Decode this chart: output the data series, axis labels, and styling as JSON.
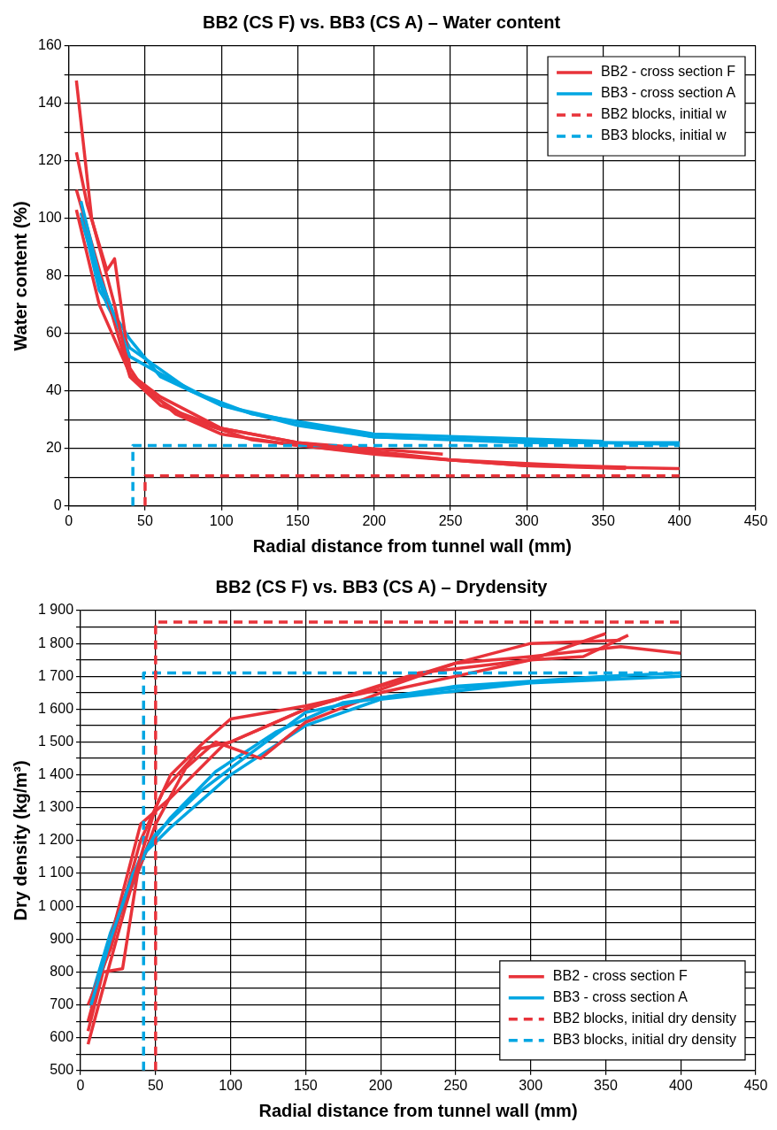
{
  "chart_data": [
    {
      "type": "line",
      "title": "BB2 (CS F) vs. BB3 (CS A) – Water content",
      "xlabel": "Radial distance from tunnel wall (mm)",
      "ylabel": "Water content (%)",
      "xlim": [
        0,
        450
      ],
      "xticks": [
        0,
        50,
        100,
        150,
        200,
        250,
        300,
        350,
        400,
        450
      ],
      "ylim": [
        0,
        160
      ],
      "yticks": [
        0,
        {
          "value": 10,
          "label": null
        },
        20,
        {
          "value": 30,
          "label": null
        },
        40,
        {
          "value": 50,
          "label": null
        },
        60,
        {
          "value": 70,
          "label": null
        },
        80,
        {
          "value": 90,
          "label": null
        },
        100,
        {
          "value": 110,
          "label": null
        },
        120,
        {
          "value": 130,
          "label": null
        },
        140,
        {
          "value": 150,
          "label": null
        },
        160
      ],
      "grid": true,
      "legend": "top right",
      "marker": "none",
      "series": [
        {
          "name": "BB2 - cross section F",
          "color": "#e8333a",
          "x": [
            5,
            15,
            30,
            40,
            60,
            100,
            150,
            200,
            250,
            300,
            365
          ],
          "values": [
            148,
            100,
            70,
            46,
            38,
            27,
            22,
            19,
            16,
            14,
            13
          ]
        },
        {
          "name": "BB3 - cross section A",
          "color": "#00a6e2",
          "x": [
            8,
            20,
            40,
            60,
            100,
            150,
            200,
            300,
            400
          ],
          "values": [
            106,
            80,
            52,
            46,
            35,
            28,
            24,
            22,
            22
          ]
        },
        {
          "name": "BB2 blocks, initial w",
          "color": "#e8333a",
          "line_style": "dashed",
          "x": [
            50,
            50,
            400
          ],
          "values": [
            0,
            10.5,
            10.5
          ]
        },
        {
          "name": "BB3 blocks, initial w",
          "color": "#00a6e2",
          "line_style": "dashed",
          "x": [
            42,
            42,
            400
          ],
          "values": [
            0,
            21,
            21
          ]
        },
        {
          "color": "#e8333a",
          "x": [
            5,
            12,
            25,
            30,
            40,
            50,
            80,
            120,
            200,
            300,
            400
          ],
          "values": [
            123,
            105,
            82,
            86,
            48,
            40,
            30,
            23,
            18,
            14,
            13
          ]
        },
        {
          "color": "#e8333a",
          "x": [
            5,
            40,
            60,
            100,
            150,
            245
          ],
          "values": [
            110,
            45,
            35,
            27,
            22,
            18
          ]
        },
        {
          "color": "#e8333a",
          "x": [
            5,
            20,
            40,
            70,
            100,
            150,
            250,
            330,
            365
          ],
          "values": [
            103,
            70,
            46,
            32,
            25,
            21,
            16,
            14,
            13.5
          ]
        },
        {
          "color": "#00a6e2",
          "x": [
            8,
            20,
            40,
            60,
            100,
            150,
            200,
            300,
            400
          ],
          "values": [
            102,
            75,
            58,
            45,
            35,
            29,
            24,
            22.5,
            21.5
          ]
        },
        {
          "color": "#00a6e2",
          "x": [
            8,
            25,
            40,
            80,
            120,
            200,
            350
          ],
          "values": [
            100,
            70,
            55,
            40,
            32,
            25,
            22.5
          ]
        }
      ]
    },
    {
      "type": "line",
      "title": "BB2 (CS F) vs. BB3 (CS A) – Drydensity",
      "xlabel": "Radial distance from tunnel wall (mm)",
      "ylabel": "Dry density (kg/m³)",
      "xlim": [
        0,
        450
      ],
      "xticks": [
        0,
        50,
        100,
        150,
        200,
        250,
        300,
        350,
        400,
        450
      ],
      "ylim": [
        500,
        1900
      ],
      "yticks": [
        500,
        {
          "value": 550,
          "label": null
        },
        600,
        {
          "value": 650,
          "label": null
        },
        700,
        {
          "value": 750,
          "label": null
        },
        800,
        {
          "value": 850,
          "label": null
        },
        900,
        {
          "value": 950,
          "label": null
        },
        {
          "value": 1000,
          "label": "1 000"
        },
        {
          "value": 1050,
          "label": null
        },
        {
          "value": 1100,
          "label": "1 100"
        },
        {
          "value": 1150,
          "label": null
        },
        {
          "value": 1200,
          "label": "1 200"
        },
        {
          "value": 1250,
          "label": null
        },
        {
          "value": 1300,
          "label": "1 300"
        },
        {
          "value": 1350,
          "label": null
        },
        {
          "value": 1400,
          "label": "1 400"
        },
        {
          "value": 1450,
          "label": null
        },
        {
          "value": 1500,
          "label": "1 500"
        },
        {
          "value": 1550,
          "label": null
        },
        {
          "value": 1600,
          "label": "1 600"
        },
        {
          "value": 1650,
          "label": null
        },
        {
          "value": 1700,
          "label": "1 700"
        },
        {
          "value": 1750,
          "label": null
        },
        {
          "value": 1800,
          "label": "1 800"
        },
        {
          "value": 1850,
          "label": null
        },
        {
          "value": 1900,
          "label": "1 900"
        }
      ],
      "grid": true,
      "legend": "bottom right",
      "marker": "none",
      "series": [
        {
          "name": "BB2 - cross section F",
          "color": "#e8333a",
          "x": [
            5,
            15,
            30,
            40,
            50,
            60,
            80,
            100,
            150,
            200,
            250,
            300,
            360
          ],
          "values": [
            580,
            750,
            1000,
            1150,
            1300,
            1400,
            1490,
            1570,
            1610,
            1660,
            1740,
            1800,
            1810
          ]
        },
        {
          "name": "BB3 - cross section A",
          "color": "#00a6e2",
          "x": [
            7,
            20,
            35,
            50,
            80,
            100,
            150,
            180,
            250,
            350,
            400
          ],
          "values": [
            700,
            900,
            1100,
            1220,
            1350,
            1420,
            1590,
            1620,
            1670,
            1700,
            1710
          ]
        },
        {
          "name": "BB2 blocks, initial dry density",
          "color": "#e8333a",
          "line_style": "dashed",
          "x": [
            50,
            50,
            400
          ],
          "values": [
            500,
            1865,
            1865
          ]
        },
        {
          "name": "BB3 blocks, initial dry density",
          "color": "#00a6e2",
          "line_style": "dashed",
          "x": [
            42,
            42,
            400
          ],
          "values": [
            500,
            1710,
            1710
          ]
        },
        {
          "color": "#e8333a",
          "x": [
            5,
            15,
            28,
            38,
            50,
            70,
            90,
            120,
            150,
            200,
            300,
            350
          ],
          "values": [
            620,
            800,
            810,
            1100,
            1250,
            1420,
            1500,
            1450,
            1560,
            1650,
            1750,
            1830
          ]
        },
        {
          "color": "#e8333a",
          "x": [
            5,
            20,
            40,
            55,
            80,
            100,
            150,
            250,
            300,
            360,
            400
          ],
          "values": [
            700,
            870,
            1200,
            1350,
            1480,
            1500,
            1600,
            1740,
            1760,
            1790,
            1770
          ]
        },
        {
          "color": "#e8333a",
          "x": [
            5,
            20,
            40,
            60,
            95,
            150,
            225,
            300,
            335,
            365
          ],
          "values": [
            650,
            900,
            1250,
            1330,
            1490,
            1600,
            1710,
            1750,
            1760,
            1825
          ]
        },
        {
          "color": "#00a6e2",
          "x": [
            7,
            20,
            40,
            60,
            100,
            150,
            200,
            300,
            400
          ],
          "values": [
            720,
            920,
            1150,
            1240,
            1400,
            1550,
            1630,
            1680,
            1700
          ]
        },
        {
          "color": "#00a6e2",
          "x": [
            7,
            25,
            45,
            60,
            90,
            130,
            175,
            250,
            360
          ],
          "values": [
            690,
            960,
            1180,
            1270,
            1410,
            1530,
            1620,
            1665,
            1700
          ]
        }
      ]
    }
  ]
}
